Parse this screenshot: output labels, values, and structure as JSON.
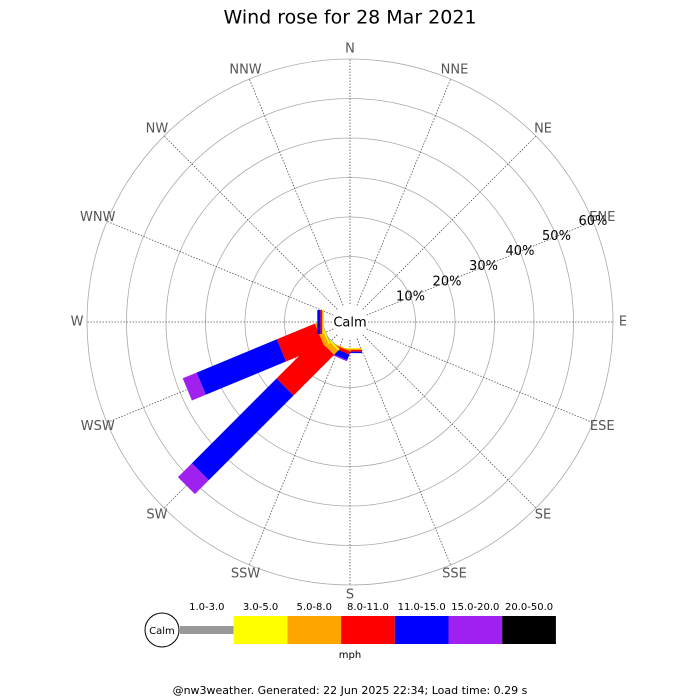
{
  "chart_data": {
    "type": "windrose",
    "title": "Wind rose for 28 Mar 2021",
    "directions": [
      "N",
      "NNE",
      "NE",
      "ENE",
      "E",
      "ESE",
      "SE",
      "SSE",
      "S",
      "SSW",
      "SW",
      "WSW",
      "W",
      "WNW",
      "NW",
      "NNW"
    ],
    "calm_label": "Calm",
    "ylim": [
      0,
      60
    ],
    "yticks": [
      {
        "value": 10,
        "label": "10%"
      },
      {
        "value": 20,
        "label": "20%"
      },
      {
        "value": 30,
        "label": "30%"
      },
      {
        "value": 40,
        "label": "40%"
      },
      {
        "value": 50,
        "label": "50%"
      },
      {
        "value": 60,
        "label": "60%"
      }
    ],
    "series": [
      {
        "name": "1.0-3.0",
        "color": "#999999",
        "values": [
          0,
          0,
          0,
          0,
          0,
          0,
          0,
          0,
          0,
          0,
          0.2,
          0.2,
          0,
          0,
          0,
          0
        ]
      },
      {
        "name": "3.0-5.0",
        "color": "#ffff00",
        "values": [
          0,
          0,
          0,
          0,
          0,
          0,
          0,
          0,
          0.2,
          0,
          0.5,
          0.4,
          0.2,
          0,
          0,
          0
        ]
      },
      {
        "name": "5.0-8.0",
        "color": "#ffa500",
        "values": [
          0,
          0,
          0,
          0,
          0,
          0,
          0,
          0,
          0.3,
          0.3,
          1.5,
          1.2,
          0.3,
          0,
          0,
          0
        ]
      },
      {
        "name": "8.0-11.0",
        "color": "#ff0000",
        "values": [
          0,
          0,
          0,
          0,
          0,
          0,
          0,
          0,
          0.4,
          0.8,
          14.5,
          10.4,
          0.4,
          0,
          0,
          0
        ]
      },
      {
        "name": "11.0-15.0",
        "color": "#0000ff",
        "values": [
          0,
          0,
          0,
          0,
          0,
          0,
          0,
          0,
          0.4,
          1.5,
          30.3,
          22,
          0.8,
          0,
          0,
          0
        ]
      },
      {
        "name": "15.0-20.0",
        "color": "#a020f0",
        "values": [
          0,
          0,
          0,
          0,
          0,
          0,
          0,
          0,
          0,
          0.3,
          5,
          3.8,
          0,
          0,
          0,
          0
        ]
      },
      {
        "name": "20.0-50.0",
        "color": "#000000",
        "values": [
          0,
          0,
          0,
          0,
          0,
          0,
          0,
          0,
          0,
          0,
          0,
          0,
          0,
          0,
          0,
          0
        ]
      }
    ],
    "unit_label": "mph",
    "footer": "@nw3weather. Generated: 22 Jun 2025 22:34; Load time: 0.29 s"
  }
}
